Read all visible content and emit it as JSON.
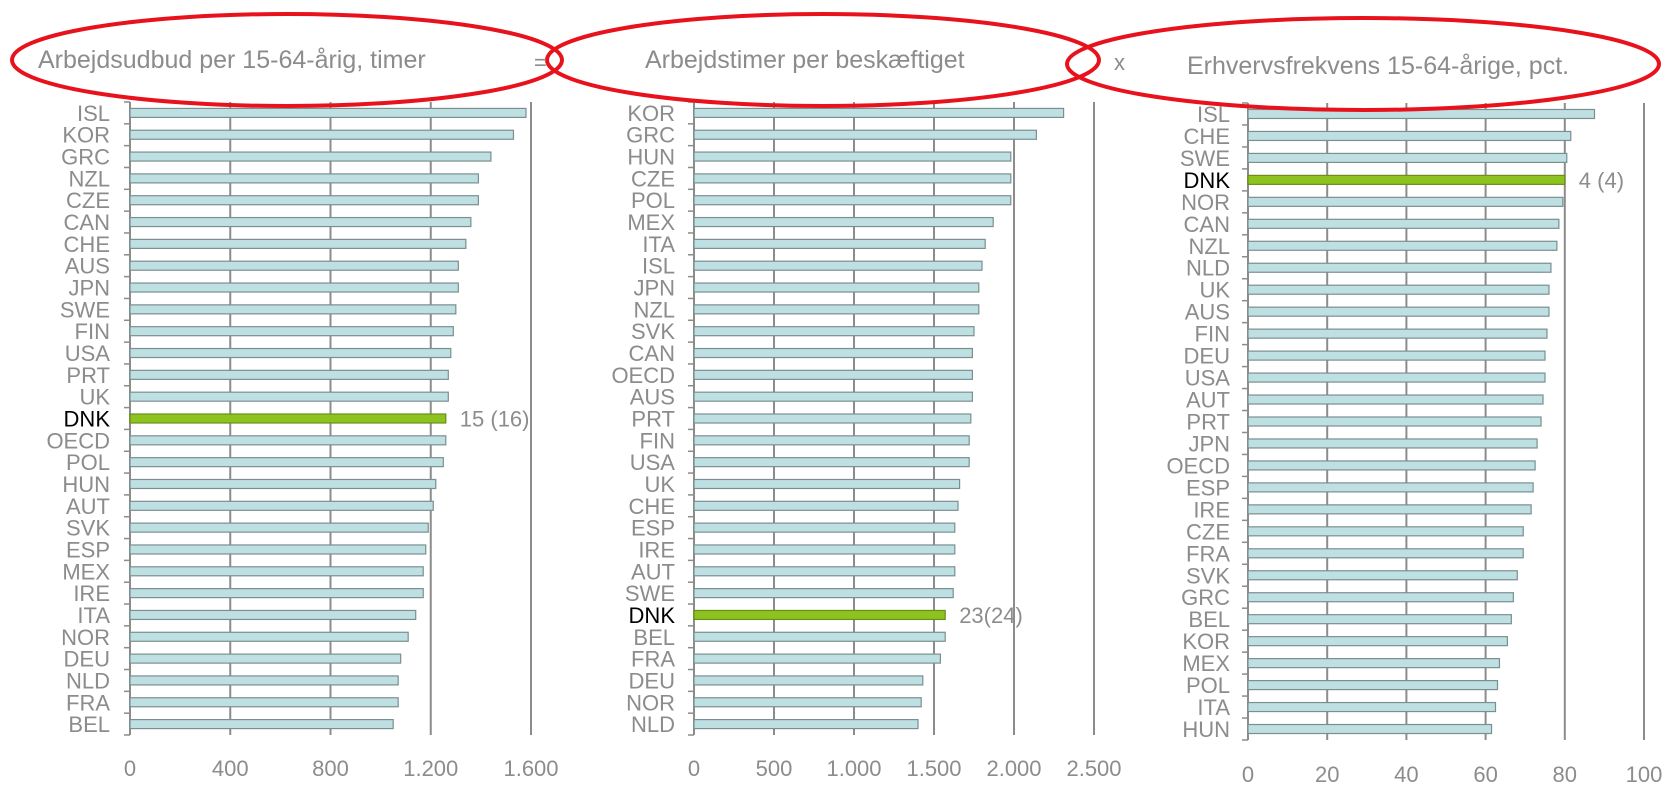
{
  "operators": {
    "equals": "=",
    "times": "x"
  },
  "colors": {
    "bar": "#bfe0e2",
    "bar_stroke": "#7a8f90",
    "highlight": "#8dc21f",
    "highlight_stroke": "#6a8f1a",
    "axis": "#8c8c8c",
    "label": "#8c8c8c",
    "label_highlight": "#000000",
    "ellipse": "#e8121d"
  },
  "chart_data": [
    {
      "type": "bar",
      "orientation": "horizontal",
      "title": "Arbejdsudbud per 15-64-årig, timer",
      "categories": [
        "ISL",
        "KOR",
        "GRC",
        "NZL",
        "CZE",
        "CAN",
        "CHE",
        "AUS",
        "JPN",
        "SWE",
        "FIN",
        "USA",
        "PRT",
        "UK",
        "DNK",
        "OECD",
        "POL",
        "HUN",
        "AUT",
        "SVK",
        "ESP",
        "MEX",
        "IRE",
        "ITA",
        "NOR",
        "DEU",
        "NLD",
        "FRA",
        "BEL"
      ],
      "values": [
        1580,
        1530,
        1440,
        1390,
        1390,
        1360,
        1340,
        1310,
        1310,
        1300,
        1290,
        1280,
        1270,
        1270,
        1260,
        1260,
        1250,
        1220,
        1210,
        1190,
        1180,
        1170,
        1170,
        1140,
        1110,
        1080,
        1070,
        1070,
        1050
      ],
      "highlight": "DNK",
      "annotation": "15 (16)",
      "xlim": [
        0,
        1600
      ],
      "xticks": [
        0,
        400,
        800,
        1200,
        1600
      ],
      "xtick_labels": [
        "0",
        "400",
        "800",
        "1.200",
        "1.600"
      ],
      "grid": true
    },
    {
      "type": "bar",
      "orientation": "horizontal",
      "title": "Arbejdstimer per beskæftiget",
      "categories": [
        "KOR",
        "GRC",
        "HUN",
        "CZE",
        "POL",
        "MEX",
        "ITA",
        "ISL",
        "JPN",
        "NZL",
        "SVK",
        "CAN",
        "OECD",
        "AUS",
        "PRT",
        "FIN",
        "USA",
        "UK",
        "CHE",
        "ESP",
        "IRE",
        "AUT",
        "SWE",
        "DNK",
        "BEL",
        "FRA",
        "DEU",
        "NOR",
        "NLD"
      ],
      "values": [
        2310,
        2140,
        1980,
        1980,
        1980,
        1870,
        1820,
        1800,
        1780,
        1780,
        1750,
        1740,
        1740,
        1740,
        1730,
        1720,
        1720,
        1660,
        1650,
        1630,
        1630,
        1630,
        1620,
        1570,
        1570,
        1540,
        1430,
        1420,
        1400
      ],
      "highlight": "DNK",
      "annotation": "23(24)",
      "xlim": [
        0,
        2500
      ],
      "xticks": [
        0,
        500,
        1000,
        1500,
        2000,
        2500
      ],
      "xtick_labels": [
        "0",
        "500",
        "1.000",
        "1.500",
        "2.000",
        "2.500"
      ],
      "grid": true
    },
    {
      "type": "bar",
      "orientation": "horizontal",
      "title": "Erhvervsfrekvens 15-64-årige, pct.",
      "categories": [
        "ISL",
        "CHE",
        "SWE",
        "DNK",
        "NOR",
        "CAN",
        "NZL",
        "NLD",
        "UK",
        "AUS",
        "FIN",
        "DEU",
        "USA",
        "AUT",
        "PRT",
        "JPN",
        "OECD",
        "ESP",
        "IRE",
        "CZE",
        "FRA",
        "SVK",
        "GRC",
        "BEL",
        "KOR",
        "MEX",
        "POL",
        "ITA",
        "HUN"
      ],
      "values": [
        87.5,
        81.5,
        80.5,
        80,
        79.5,
        78.5,
        78,
        76.5,
        76,
        76,
        75.5,
        75,
        75,
        74.5,
        74,
        73,
        72.5,
        72,
        71.5,
        69.5,
        69.5,
        68,
        67,
        66.5,
        65.5,
        63.5,
        63,
        62.5,
        61.5
      ],
      "highlight": "DNK",
      "annotation": "4 (4)",
      "xlim": [
        0,
        100
      ],
      "xticks": [
        0,
        20,
        40,
        60,
        80,
        100
      ],
      "xtick_labels": [
        "0",
        "20",
        "40",
        "60",
        "80",
        "100"
      ],
      "grid": true
    }
  ]
}
